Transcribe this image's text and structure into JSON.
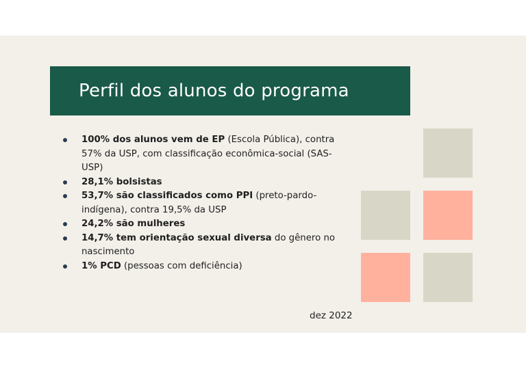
{
  "title": "Perfil dos alunos do programa",
  "bullets": [
    {
      "bold": "100% dos alunos vem de EP",
      "rest": " (Escola Pública), contra 57% da USP, com classificação econômica-social (SAS-USP)"
    },
    {
      "bold": "28,1% bolsistas",
      "rest": ""
    },
    {
      "bold": "53,7% são classificados como PPI",
      "rest": " (preto-pardo-indígena),  contra 19,5% da USP"
    },
    {
      "bold": "24,2% são mulheres",
      "rest": ""
    },
    {
      "bold": "14,7% tem orientação sexual diversa",
      "rest": " do gênero no nascimento"
    },
    {
      "bold": "1% PCD",
      "rest": " (pessoas com deficiência)"
    }
  ],
  "date": "dez 2022",
  "colors": {
    "title_bg": "#1a5a48",
    "slide_bg": "#f3f0ea",
    "square_grey": "#d8d6c6",
    "square_salmon": "#ffb19e",
    "bullet_dot": "#2a3b50"
  }
}
